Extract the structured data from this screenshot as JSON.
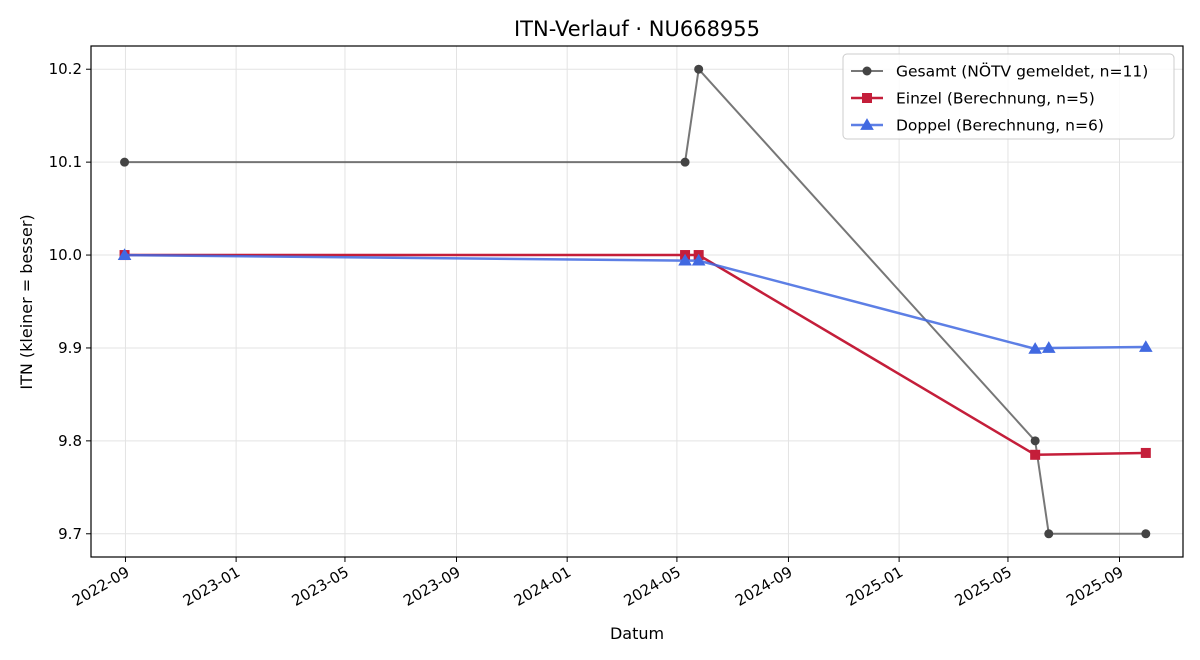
{
  "chart_data": {
    "type": "line",
    "title": "ITN-Verlauf · NU668955",
    "xlabel": "Datum",
    "ylabel": "ITN  (kleiner = besser)",
    "x_ticks": [
      "2022-09",
      "2023-01",
      "2023-05",
      "2023-09",
      "2024-01",
      "2024-05",
      "2024-09",
      "2025-01",
      "2025-05",
      "2025-09"
    ],
    "y_ticks": [
      "9.7",
      "9.8",
      "9.9",
      "10.0",
      "10.1",
      "10.2"
    ],
    "ylim": [
      9.675,
      10.225
    ],
    "xlim": [
      "2022-07-25",
      "2025-11-10"
    ],
    "grid": true,
    "legend_position": "top-right",
    "series": [
      {
        "name": "Gesamt (NÖTV gemeldet, n=11)",
        "color": "#555555",
        "marker": "circle",
        "points": [
          {
            "x": "2022-08-31",
            "y": 10.1
          },
          {
            "x": "2024-05-10",
            "y": 10.1
          },
          {
            "x": "2024-05-25",
            "y": 10.2
          },
          {
            "x": "2025-05-31",
            "y": 9.8
          },
          {
            "x": "2025-06-15",
            "y": 9.7
          },
          {
            "x": "2025-09-30",
            "y": 9.7
          }
        ]
      },
      {
        "name": "Einzel (Berechnung, n=5)",
        "color": "#c41e3a",
        "marker": "square",
        "points": [
          {
            "x": "2022-08-31",
            "y": 10.0
          },
          {
            "x": "2024-05-10",
            "y": 10.0
          },
          {
            "x": "2024-05-25",
            "y": 10.0
          },
          {
            "x": "2025-05-31",
            "y": 9.785
          },
          {
            "x": "2025-09-30",
            "y": 9.787
          }
        ]
      },
      {
        "name": "Doppel (Berechnung, n=6)",
        "color": "#4169e1",
        "marker": "triangle",
        "points": [
          {
            "x": "2022-08-31",
            "y": 10.0
          },
          {
            "x": "2024-05-10",
            "y": 9.994
          },
          {
            "x": "2024-05-25",
            "y": 9.994
          },
          {
            "x": "2025-05-31",
            "y": 9.899
          },
          {
            "x": "2025-06-15",
            "y": 9.9
          },
          {
            "x": "2025-09-30",
            "y": 9.901
          }
        ]
      }
    ]
  }
}
